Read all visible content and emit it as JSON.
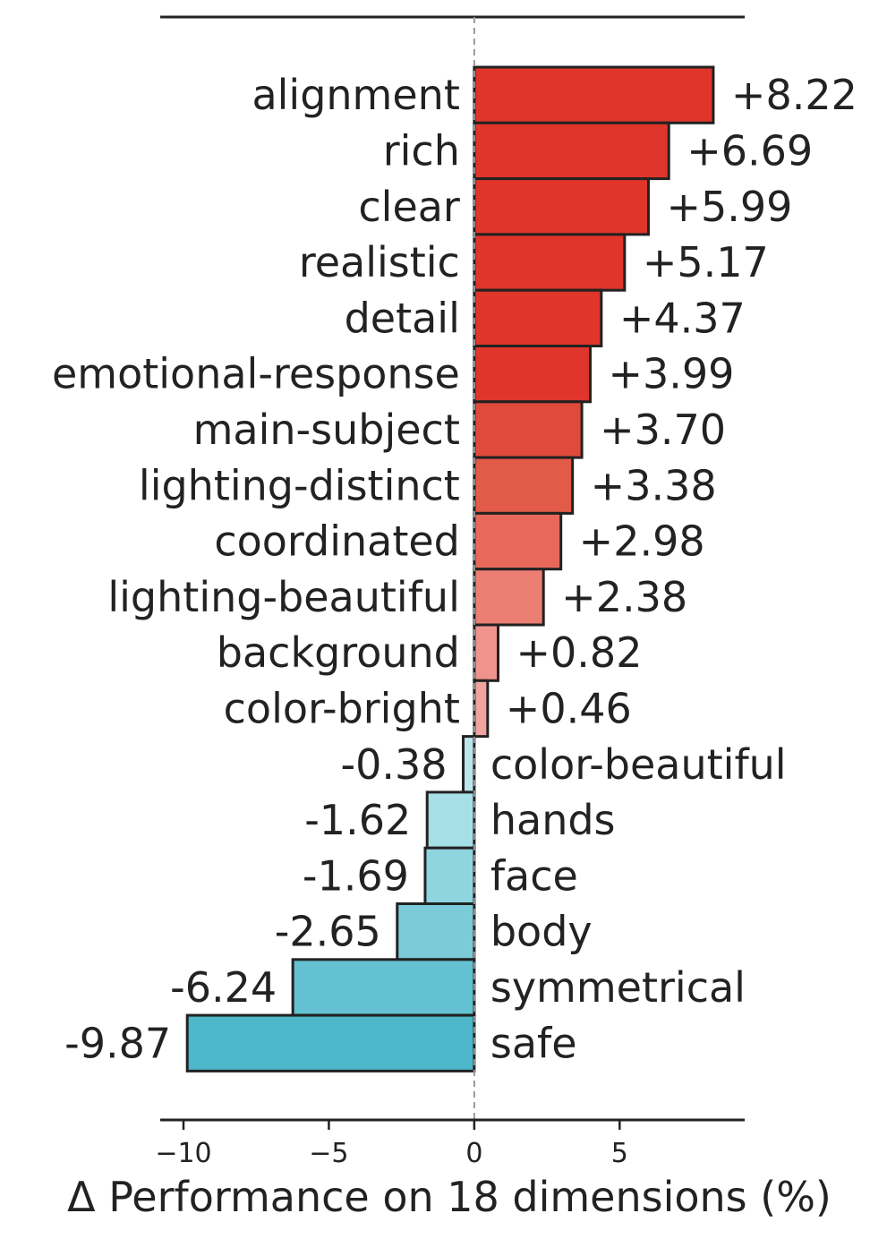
{
  "chart_data": {
    "type": "bar",
    "orientation": "horizontal",
    "xlabel": "Δ Performance on 18 dimensions (%)",
    "xlim": [
      -10.8,
      9.3
    ],
    "xticks": [
      -10,
      -5,
      0,
      5
    ],
    "xtick_labels": [
      "−10",
      "−5",
      "0",
      "5"
    ],
    "zero_line": "dashed",
    "grid": false,
    "categories": [
      "alignment",
      "rich",
      "clear",
      "realistic",
      "detail",
      "emotional-response",
      "main-subject",
      "lighting-distinct",
      "coordinated",
      "lighting-beautiful",
      "background",
      "color-bright",
      "color-beautiful",
      "hands",
      "face",
      "body",
      "symmetrical",
      "safe"
    ],
    "values": [
      8.22,
      6.69,
      5.99,
      5.17,
      4.37,
      3.99,
      3.7,
      3.38,
      2.98,
      2.38,
      0.82,
      0.46,
      -0.38,
      -1.62,
      -1.69,
      -2.65,
      -6.24,
      -9.87
    ],
    "value_labels": [
      "+8.22",
      "+6.69",
      "+5.99",
      "+5.17",
      "+4.37",
      "+3.99",
      "+3.70",
      "+3.38",
      "+2.98",
      "+2.38",
      "+0.82",
      "+0.46",
      "-0.38",
      "-1.62",
      "-1.69",
      "-2.65",
      "-6.24",
      "-9.87"
    ],
    "colors": [
      "#e0352b",
      "#e0352b",
      "#e0352b",
      "#e0352b",
      "#e0352b",
      "#e0352b",
      "#e04a3a",
      "#e25a48",
      "#e8695c",
      "#ec7e72",
      "#ef938c",
      "#f1a39e",
      "#bde6ec",
      "#a7dfe7",
      "#8fd5e0",
      "#7ccbd8",
      "#64c1d1",
      "#4cb8ca"
    ],
    "edge_color": "#222222"
  }
}
